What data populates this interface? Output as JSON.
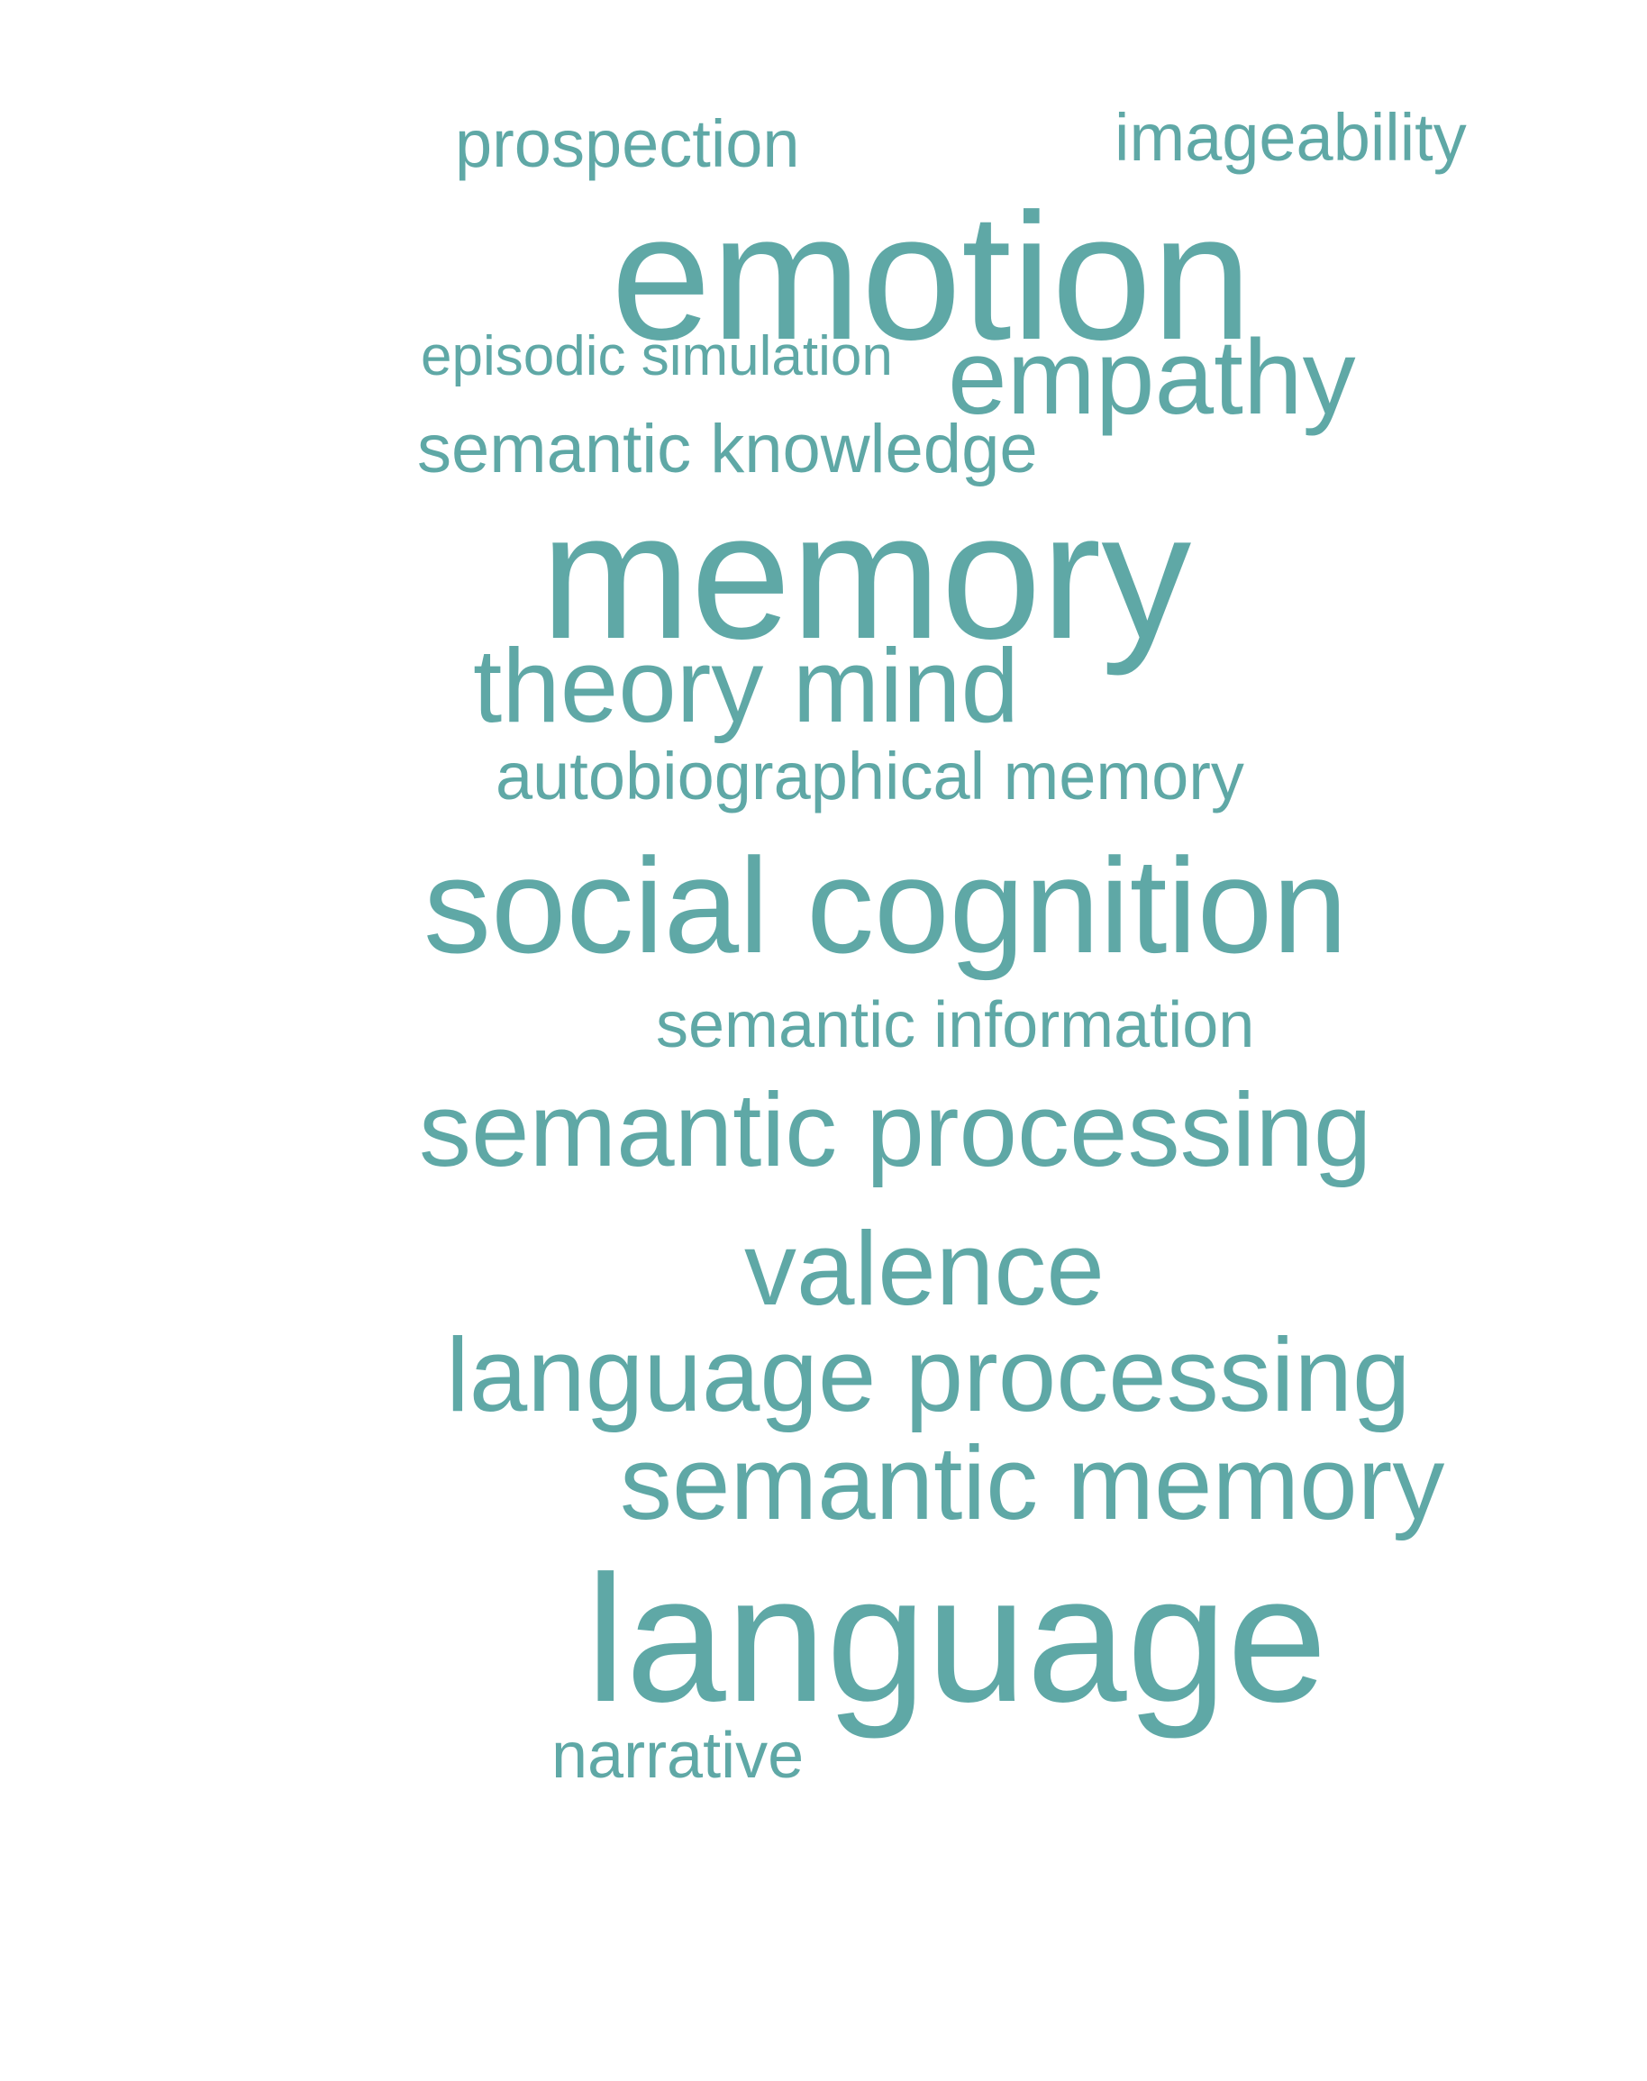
{
  "words": {
    "prospection": "prospection",
    "imageability": "imageability",
    "emotion": "emotion",
    "episodic_simulation": "episodic simulation",
    "empathy": "empathy",
    "semantic_knowledge": "semantic knowledge",
    "memory": "memory",
    "theory_mind": "theory mind",
    "autobiographical_memory": "autobiographical memory",
    "social_cognition": "social cognition",
    "semantic_information": "semantic information",
    "semantic_processing": "semantic processing",
    "valence": "valence",
    "language_processing": "language processing",
    "semantic_memory": "semantic memory",
    "language": "language",
    "narrative": "narrative"
  },
  "colors": {
    "word": "#5fa8a6",
    "background": "#ffffff"
  }
}
